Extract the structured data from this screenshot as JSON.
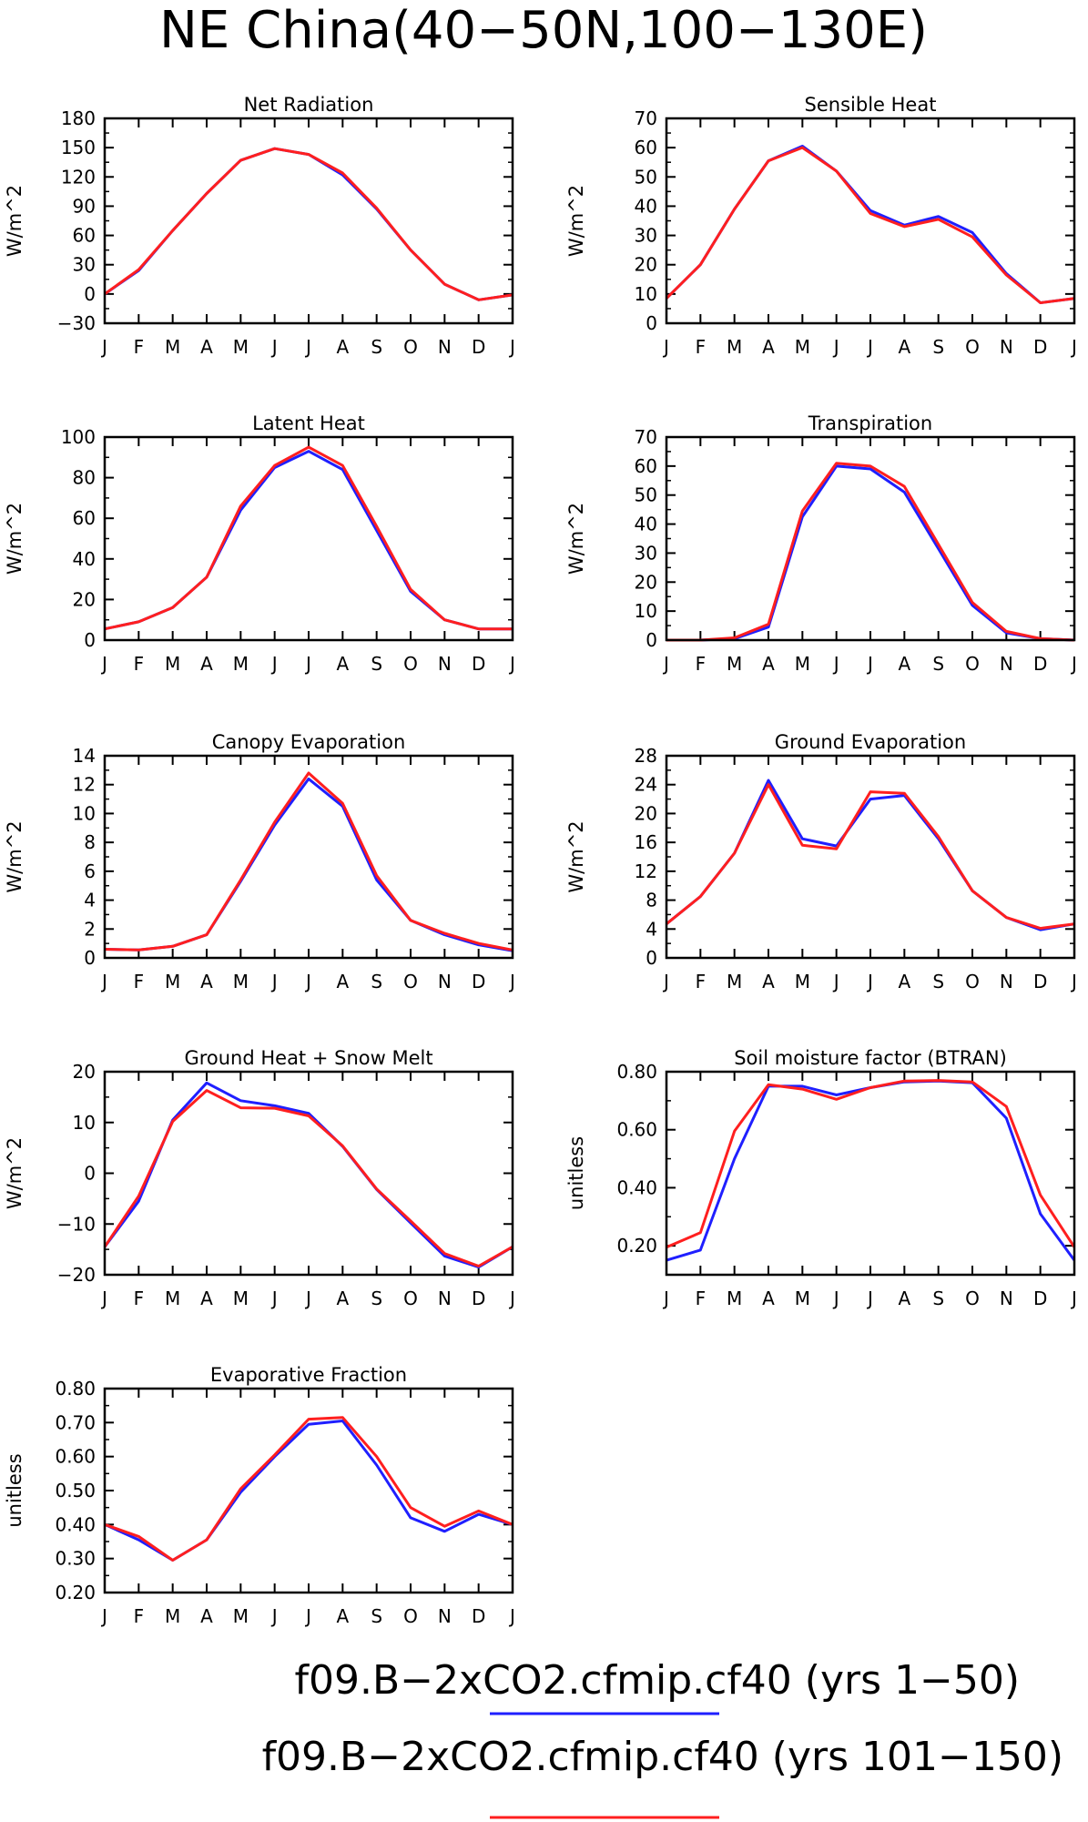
{
  "title": "NE China(40−50N,100−130E)",
  "colors": {
    "series_a": "#1f1fff",
    "series_b": "#ff1f1f"
  },
  "legend": {
    "entries": [
      {
        "label": "f09.B−2xCO2.cfmip.cf40 (yrs 1−50)",
        "color": "#1f1fff"
      },
      {
        "label": "f09.B−2xCO2.cfmip.cf40 (yrs 101−150)",
        "color": "#ff1f1f"
      }
    ]
  },
  "chart_data": [
    {
      "type": "line",
      "title": "Net Radiation",
      "ylabel": "W/m^2",
      "categories": [
        "J",
        "F",
        "M",
        "A",
        "M",
        "J",
        "J",
        "A",
        "S",
        "O",
        "N",
        "D",
        "J"
      ],
      "ylim": [
        -30,
        180
      ],
      "yticks": [
        -30,
        0,
        30,
        60,
        90,
        120,
        150,
        180
      ],
      "ytick_labels": [
        "−30",
        "0",
        "30",
        "60",
        "90",
        "120",
        "150",
        "180"
      ],
      "series": [
        {
          "color": "#1f1fff",
          "values": [
            0,
            24,
            65,
            103,
            137,
            149,
            143,
            122,
            87,
            45,
            10,
            -6,
            -1
          ]
        },
        {
          "color": "#ff1f1f",
          "values": [
            0,
            25,
            65,
            103,
            137,
            149,
            143,
            124,
            88,
            45,
            10,
            -6,
            -1
          ]
        }
      ]
    },
    {
      "type": "line",
      "title": "Sensible Heat",
      "ylabel": "W/m^2",
      "categories": [
        "J",
        "F",
        "M",
        "A",
        "M",
        "J",
        "J",
        "A",
        "S",
        "O",
        "N",
        "D",
        "J"
      ],
      "ylim": [
        0,
        70
      ],
      "yticks": [
        0,
        10,
        20,
        30,
        40,
        50,
        60,
        70
      ],
      "ytick_labels": [
        "0",
        "10",
        "20",
        "30",
        "40",
        "50",
        "60",
        "70"
      ],
      "series": [
        {
          "color": "#1f1fff",
          "values": [
            8.5,
            20,
            39,
            55.5,
            60.5,
            52,
            38.5,
            33.5,
            36.5,
            31,
            17,
            7,
            8.5
          ]
        },
        {
          "color": "#ff1f1f",
          "values": [
            8.5,
            20,
            39,
            55.5,
            60,
            52,
            37.5,
            33,
            35.5,
            29.5,
            16.5,
            7,
            8.5
          ]
        }
      ]
    },
    {
      "type": "line",
      "title": "Latent Heat",
      "ylabel": "W/m^2",
      "categories": [
        "J",
        "F",
        "M",
        "A",
        "M",
        "J",
        "J",
        "A",
        "S",
        "O",
        "N",
        "D",
        "J"
      ],
      "ylim": [
        0,
        100
      ],
      "yticks": [
        0,
        20,
        40,
        60,
        80,
        100
      ],
      "ytick_labels": [
        "0",
        "20",
        "40",
        "60",
        "80",
        "100"
      ],
      "series": [
        {
          "color": "#1f1fff",
          "values": [
            5.5,
            9,
            16,
            31,
            64,
            85,
            93,
            84,
            54,
            24,
            10,
            5.5,
            5.5
          ]
        },
        {
          "color": "#ff1f1f",
          "values": [
            5.5,
            9,
            16,
            31,
            66,
            86,
            95,
            86,
            56,
            25,
            10,
            5.5,
            5.5
          ]
        }
      ]
    },
    {
      "type": "line",
      "title": "Transpiration",
      "ylabel": "W/m^2",
      "categories": [
        "J",
        "F",
        "M",
        "A",
        "M",
        "J",
        "J",
        "A",
        "S",
        "O",
        "N",
        "D",
        "J"
      ],
      "ylim": [
        0,
        70
      ],
      "yticks": [
        0,
        10,
        20,
        30,
        40,
        50,
        60,
        70
      ],
      "ytick_labels": [
        "0",
        "10",
        "20",
        "30",
        "40",
        "50",
        "60",
        "70"
      ],
      "series": [
        {
          "color": "#1f1fff",
          "values": [
            0,
            0,
            0.5,
            4.5,
            42.5,
            60,
            59,
            51,
            31.5,
            12,
            2.5,
            0.5,
            0
          ]
        },
        {
          "color": "#ff1f1f",
          "values": [
            0,
            0,
            0.8,
            5.5,
            44.5,
            61,
            60,
            53,
            33,
            13,
            3,
            0.5,
            0
          ]
        }
      ]
    },
    {
      "type": "line",
      "title": "Canopy Evaporation",
      "ylabel": "W/m^2",
      "categories": [
        "J",
        "F",
        "M",
        "A",
        "M",
        "J",
        "J",
        "A",
        "S",
        "O",
        "N",
        "D",
        "J"
      ],
      "ylim": [
        0,
        14
      ],
      "yticks": [
        0,
        2,
        4,
        6,
        8,
        10,
        12,
        14
      ],
      "ytick_labels": [
        "0",
        "2",
        "4",
        "6",
        "8",
        "10",
        "12",
        "14"
      ],
      "series": [
        {
          "color": "#1f1fff",
          "values": [
            0.6,
            0.55,
            0.8,
            1.6,
            5.3,
            9.2,
            12.4,
            10.5,
            5.4,
            2.6,
            1.6,
            0.9,
            0.5
          ]
        },
        {
          "color": "#ff1f1f",
          "values": [
            0.6,
            0.55,
            0.8,
            1.6,
            5.4,
            9.4,
            12.8,
            10.7,
            5.7,
            2.6,
            1.7,
            1.0,
            0.55
          ]
        }
      ]
    },
    {
      "type": "line",
      "title": "Ground Evaporation",
      "ylabel": "W/m^2",
      "categories": [
        "J",
        "F",
        "M",
        "A",
        "M",
        "J",
        "J",
        "A",
        "S",
        "O",
        "N",
        "D",
        "J"
      ],
      "ylim": [
        0,
        28
      ],
      "yticks": [
        0,
        4,
        8,
        12,
        16,
        20,
        24,
        28
      ],
      "ytick_labels": [
        "0",
        "4",
        "8",
        "12",
        "16",
        "20",
        "24",
        "28"
      ],
      "series": [
        {
          "color": "#1f1fff",
          "values": [
            4.7,
            8.5,
            14.5,
            24.6,
            16.5,
            15.5,
            22.0,
            22.5,
            16.5,
            9.3,
            5.6,
            3.9,
            4.7
          ]
        },
        {
          "color": "#ff1f1f",
          "values": [
            4.7,
            8.5,
            14.5,
            24.0,
            15.6,
            15.1,
            23.0,
            22.8,
            16.8,
            9.3,
            5.6,
            4.1,
            4.7
          ]
        }
      ]
    },
    {
      "type": "line",
      "title": "Ground Heat + Snow Melt",
      "ylabel": "W/m^2",
      "categories": [
        "J",
        "F",
        "M",
        "A",
        "M",
        "J",
        "J",
        "A",
        "S",
        "O",
        "N",
        "D",
        "J"
      ],
      "ylim": [
        -20,
        20
      ],
      "yticks": [
        -20,
        -10,
        0,
        10,
        20
      ],
      "ytick_labels": [
        "−20",
        "−10",
        "0",
        "10",
        "20"
      ],
      "series": [
        {
          "color": "#1f1fff",
          "values": [
            -14.5,
            -5.5,
            10.5,
            17.8,
            14.3,
            13.3,
            11.8,
            5.3,
            -3.2,
            -9.8,
            -16.3,
            -18.5,
            -14.5
          ]
        },
        {
          "color": "#ff1f1f",
          "values": [
            -14.5,
            -4.5,
            10.2,
            16.3,
            12.9,
            12.8,
            11.3,
            5.4,
            -3.1,
            -9.4,
            -15.8,
            -18.3,
            -14.5
          ]
        }
      ]
    },
    {
      "type": "line",
      "title": "Soil moisture factor (BTRAN)",
      "ylabel": "unitless",
      "categories": [
        "J",
        "F",
        "M",
        "A",
        "M",
        "J",
        "J",
        "A",
        "S",
        "O",
        "N",
        "D",
        "J"
      ],
      "ylim": [
        0.1,
        0.8
      ],
      "yticks": [
        0.2,
        0.4,
        0.6,
        0.8
      ],
      "ytick_labels": [
        "0.20",
        "0.40",
        "0.60",
        "0.80"
      ],
      "series": [
        {
          "color": "#1f1fff",
          "values": [
            0.15,
            0.185,
            0.5,
            0.75,
            0.75,
            0.72,
            0.745,
            0.765,
            0.768,
            0.762,
            0.64,
            0.31,
            0.15
          ]
        },
        {
          "color": "#ff1f1f",
          "values": [
            0.195,
            0.245,
            0.595,
            0.755,
            0.74,
            0.705,
            0.745,
            0.768,
            0.77,
            0.765,
            0.68,
            0.375,
            0.195
          ]
        }
      ]
    },
    {
      "type": "line",
      "title": "Evaporative Fraction",
      "ylabel": "unitless",
      "categories": [
        "J",
        "F",
        "M",
        "A",
        "M",
        "J",
        "J",
        "A",
        "S",
        "O",
        "N",
        "D",
        "J"
      ],
      "ylim": [
        0.2,
        0.8
      ],
      "yticks": [
        0.2,
        0.3,
        0.4,
        0.5,
        0.6,
        0.7,
        0.8
      ],
      "ytick_labels": [
        "0.20",
        "0.30",
        "0.40",
        "0.50",
        "0.60",
        "0.70",
        "0.80"
      ],
      "series": [
        {
          "color": "#1f1fff",
          "values": [
            0.4,
            0.355,
            0.295,
            0.355,
            0.495,
            0.6,
            0.695,
            0.705,
            0.575,
            0.42,
            0.38,
            0.43,
            0.4
          ]
        },
        {
          "color": "#ff1f1f",
          "values": [
            0.4,
            0.365,
            0.295,
            0.355,
            0.505,
            0.605,
            0.71,
            0.715,
            0.6,
            0.45,
            0.395,
            0.44,
            0.4
          ]
        }
      ]
    }
  ]
}
